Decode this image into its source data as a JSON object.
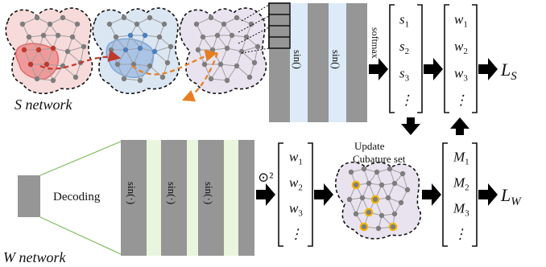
{
  "labels": {
    "s_network": "S network",
    "w_network": "W network",
    "softmax": "softmax",
    "decoding": "Decoding",
    "odot_sq": "⊙²",
    "update_line1": "Update",
    "update_line2": "Cubature set",
    "loss_s": "L",
    "loss_s_sub": "S",
    "loss_w": "L",
    "loss_w_sub": "W"
  },
  "s_layers": [
    "sin()",
    "sin()"
  ],
  "w_layers": [
    "sin(·)",
    "sin(·)",
    "sin(·)"
  ],
  "matrix_s": [
    {
      "var": "s",
      "sub": "1"
    },
    {
      "var": "s",
      "sub": "2"
    },
    {
      "var": "s",
      "sub": "3"
    },
    {
      "var": "⋮",
      "sub": ""
    }
  ],
  "matrix_w_top": [
    {
      "var": "w",
      "sub": "1"
    },
    {
      "var": "w",
      "sub": "2"
    },
    {
      "var": "w",
      "sub": "3"
    },
    {
      "var": "⋮",
      "sub": ""
    }
  ],
  "matrix_w_bottom": [
    {
      "var": "w",
      "sub": "1"
    },
    {
      "var": "w",
      "sub": "2"
    },
    {
      "var": "w",
      "sub": "3"
    },
    {
      "var": "⋮",
      "sub": ""
    }
  ],
  "matrix_m": [
    {
      "var": "M",
      "sub": "1"
    },
    {
      "var": "M",
      "sub": "2"
    },
    {
      "var": "M",
      "sub": "3"
    },
    {
      "var": "⋮",
      "sub": ""
    }
  ],
  "colors": {
    "layer_gray": "#969696",
    "sin_blue": "#dcebf7",
    "sin_green": "#e9f5dc",
    "red_fill": "#f7dada",
    "red_region": "#e36b6b",
    "blue_fill": "#dbe6f3",
    "blue_region": "#7fa8d6",
    "purple_fill": "#e9e3f0",
    "node_gray": "#7d7d7d",
    "edge_gray": "#a0a0a0",
    "path_red": "#c0392b",
    "path_orange": "#e67e22",
    "cubature_yellow": "#f0b400",
    "decoder_green": "#7dbb5a"
  }
}
